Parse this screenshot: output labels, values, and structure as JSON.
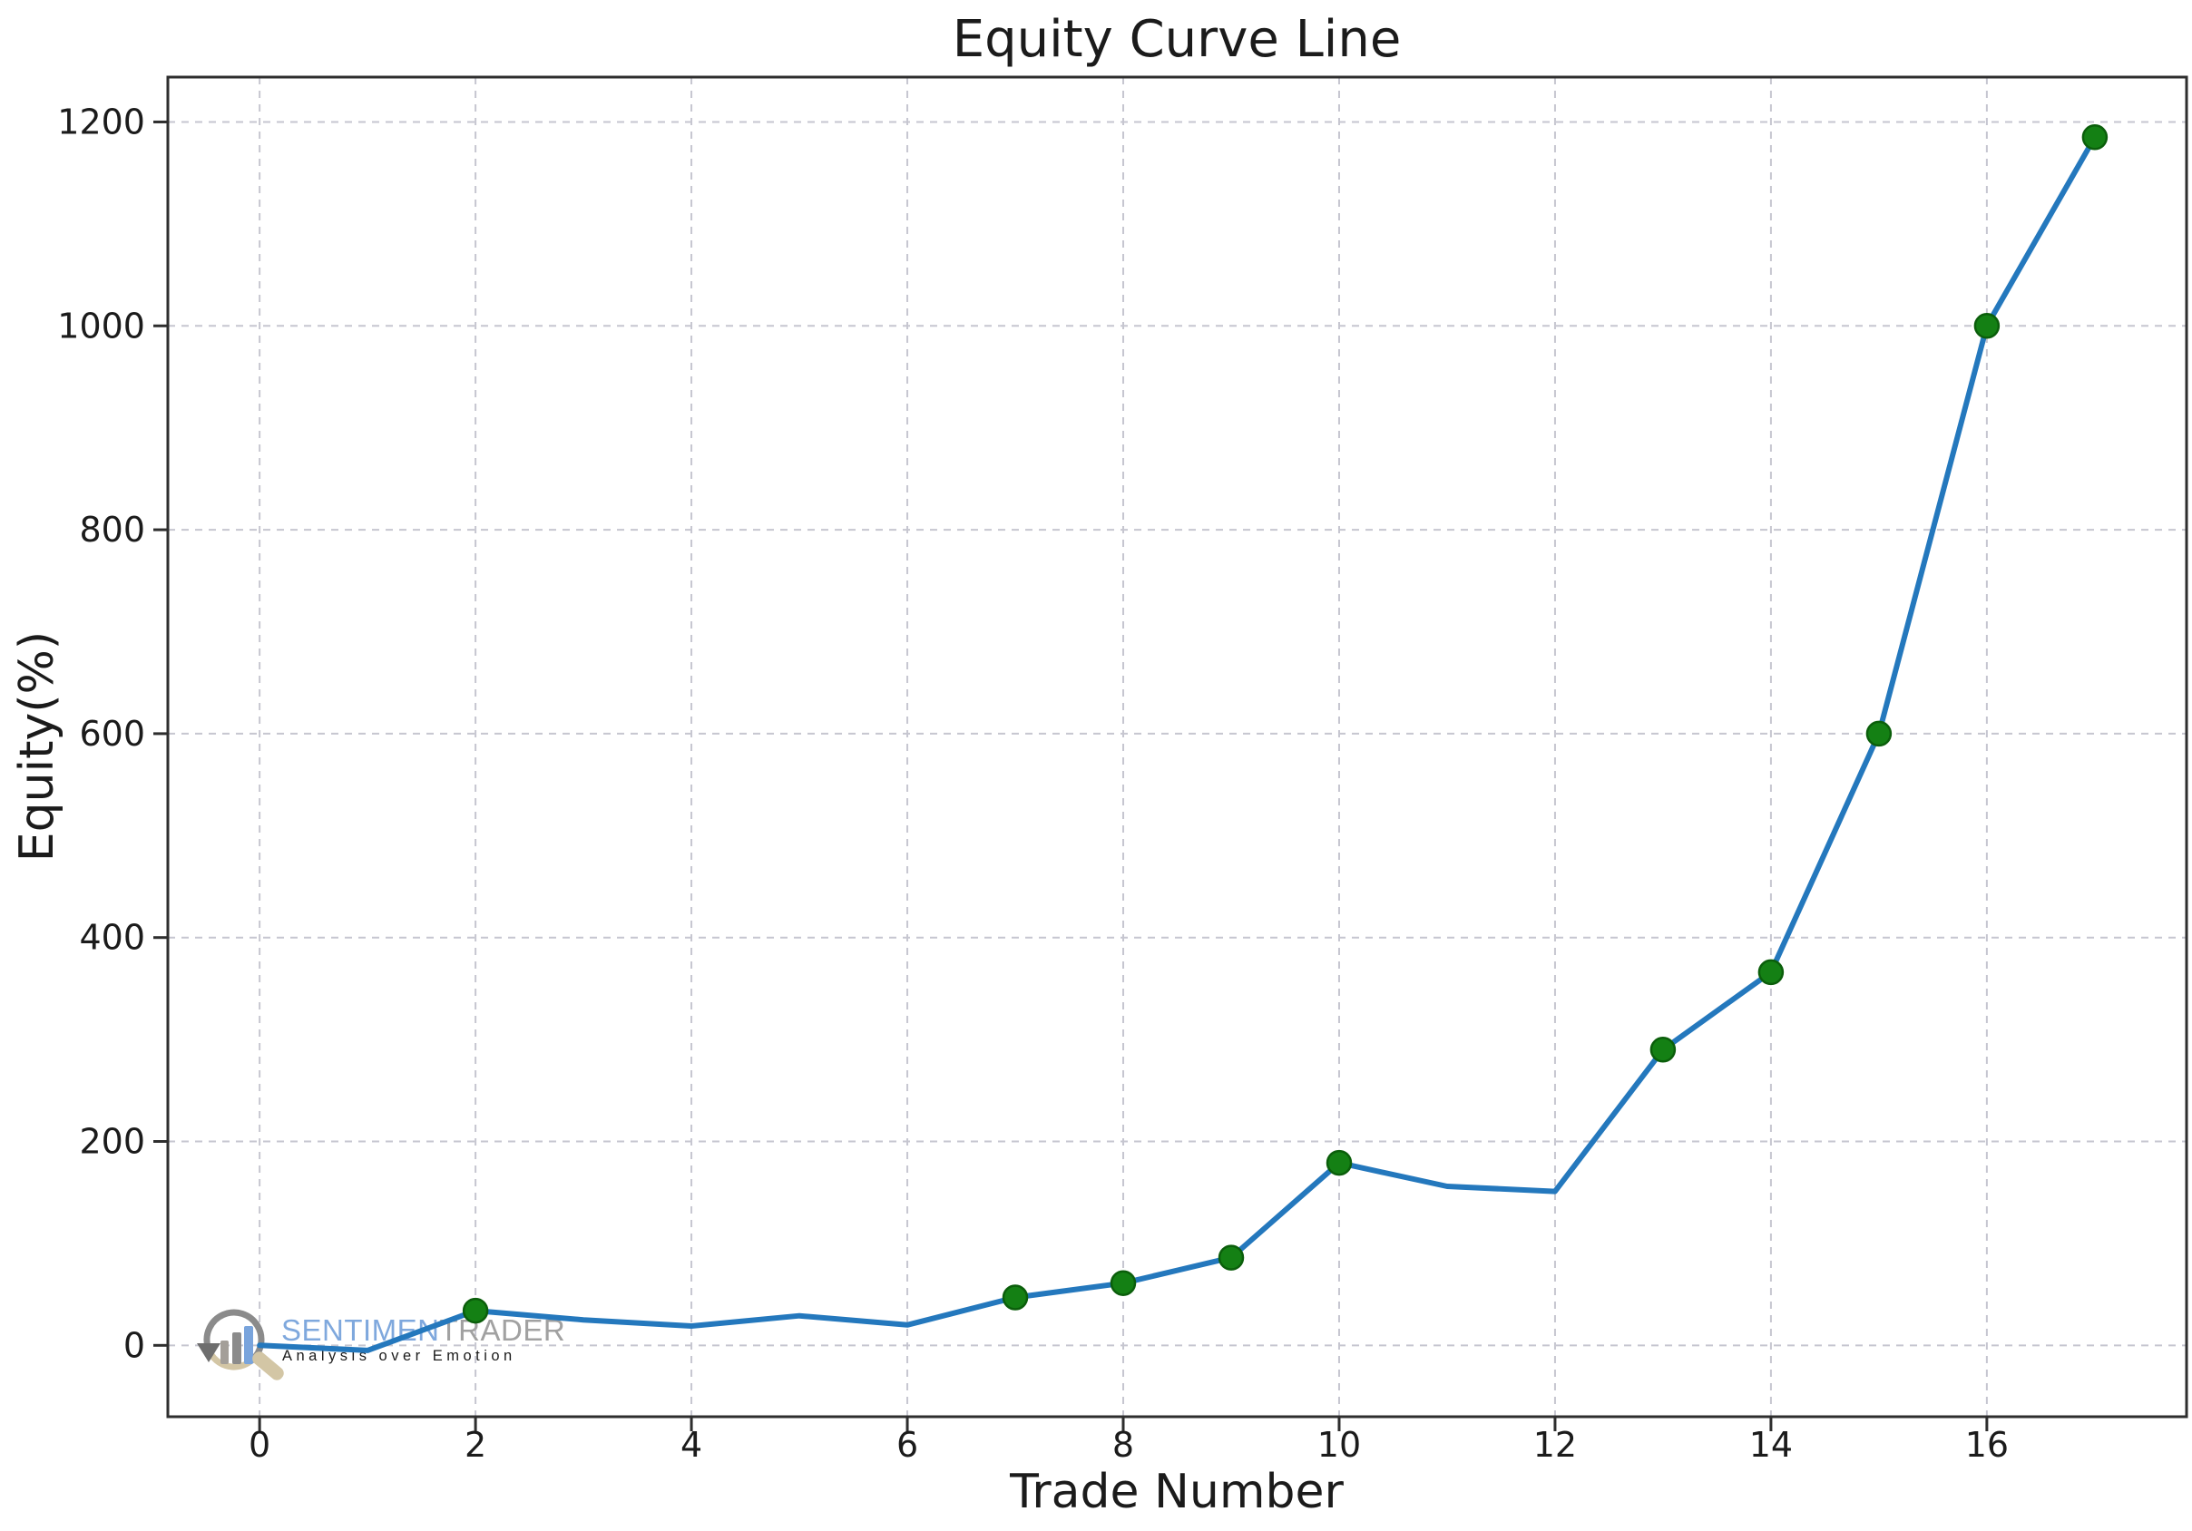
{
  "chart_data": {
    "type": "line",
    "title": "Equity Curve Line",
    "xlabel": "Trade Number",
    "ylabel": "Equity(%)",
    "x": [
      0,
      1,
      2,
      3,
      4,
      5,
      6,
      7,
      8,
      9,
      10,
      11,
      12,
      13,
      14,
      15,
      16,
      17
    ],
    "series": [
      {
        "name": "Equity",
        "values": [
          0,
          -5,
          34,
          25,
          19,
          29,
          20,
          47,
          61,
          86,
          179,
          156,
          151,
          290,
          366,
          600,
          1000,
          1185
        ],
        "line_color": "#2478bd",
        "line_width": 6,
        "marker_x": [
          2,
          7,
          8,
          9,
          10,
          13,
          14,
          15,
          16,
          17
        ],
        "marker_color": "#148014",
        "marker_edge_color": "#0b5e0b",
        "marker_radius": 13
      }
    ],
    "xticks": [
      0,
      2,
      4,
      6,
      8,
      10,
      12,
      14,
      16
    ],
    "yticks": [
      0,
      200,
      400,
      600,
      800,
      1000,
      1200
    ],
    "xlim": [
      -0.85,
      17.85
    ],
    "ylim": [
      -70,
      1244
    ],
    "grid": true,
    "grid_style": "dashed",
    "grid_color": "#c6c6d0",
    "spine_color": "#2e2e2e",
    "tick_color": "#2e2e2e",
    "text_color": "#1b1b1b",
    "legend_position": "none",
    "plot_background": "#ffffff"
  },
  "watermark": {
    "brand_part1": "SENTIMEN",
    "brand_part2": "TRADER",
    "tagline": "Analysis over Emotion",
    "brand_blue": "#7fa8dd",
    "brand_gray": "#a1a1a1",
    "tagline_gray": "#a8a8a8",
    "logo": {
      "arc_gray": "#8b8b8b",
      "arc_tan": "#d3c6a5",
      "arrow_gray": "#6e6e6e",
      "bar1_color": "#a49f99",
      "bar2_color": "#8b8b8b",
      "bar3_color": "#79a4dc",
      "handle_color": "#d3c6a5"
    }
  }
}
